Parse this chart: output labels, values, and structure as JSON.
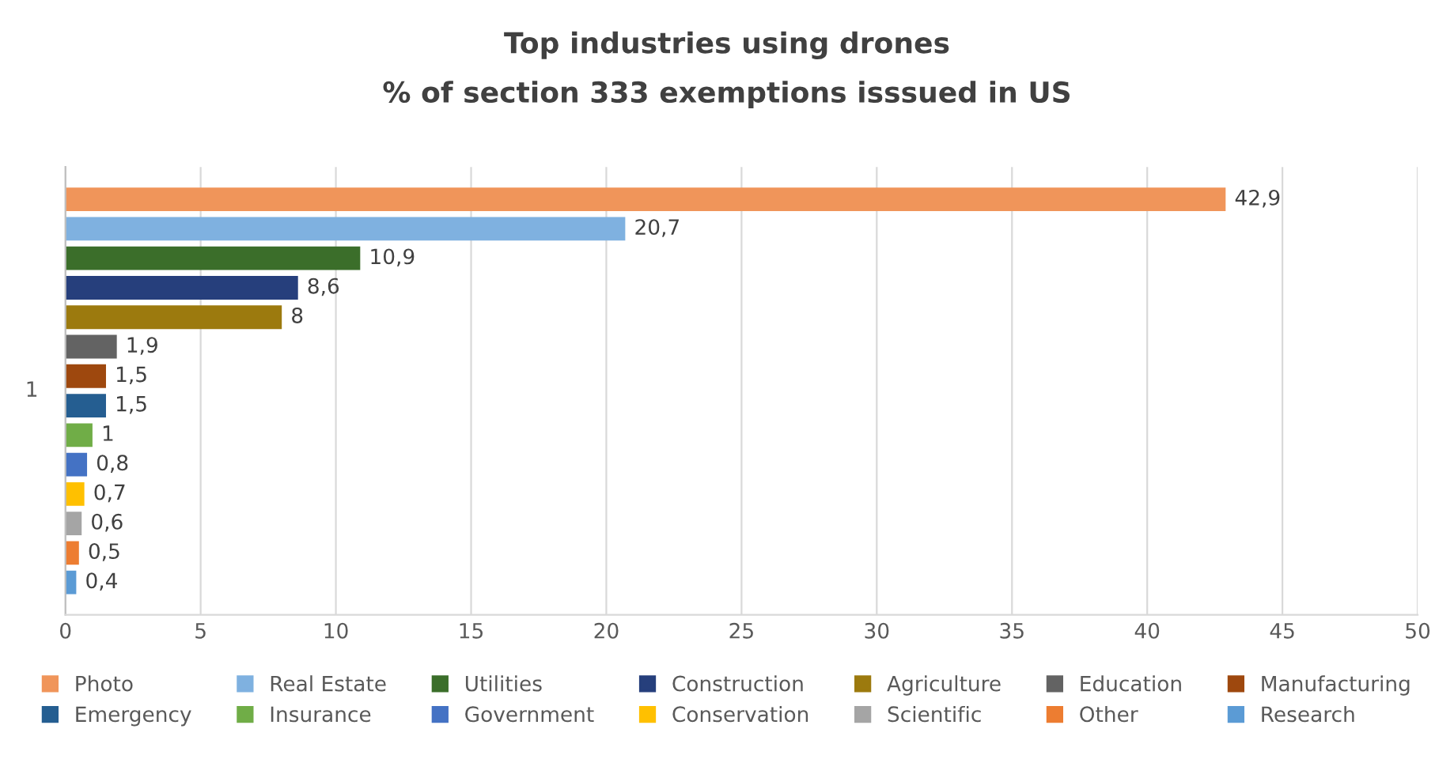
{
  "chart_data": {
    "type": "bar",
    "orientation": "horizontal",
    "stacked": true,
    "title": "Top industries using drones",
    "subtitle": "% of section 333 exemptions isssued in US",
    "annotations": [
      "1"
    ],
    "categories": [
      null,
      null,
      null,
      null,
      null,
      null,
      null,
      null,
      null,
      null,
      null,
      null,
      null,
      null
    ],
    "series": [
      {
        "name": "Photo",
        "color": "#f0955a",
        "values": [
          42.9,
          null,
          null,
          null,
          null,
          null,
          null,
          null,
          null,
          null,
          null,
          null,
          null,
          null
        ],
        "value_labels": [
          "42,9",
          null,
          null,
          null,
          null,
          null,
          null,
          null,
          null,
          null,
          null,
          null,
          null,
          null
        ]
      },
      {
        "name": "Real Estate",
        "color": "#7fb1e0",
        "values": [
          null,
          20.7,
          null,
          null,
          null,
          null,
          null,
          null,
          null,
          null,
          null,
          null,
          null,
          null
        ],
        "value_labels": [
          null,
          "20,7",
          null,
          null,
          null,
          null,
          null,
          null,
          null,
          null,
          null,
          null,
          null,
          null
        ]
      },
      {
        "name": "Utilities",
        "color": "#3b6e2a",
        "values": [
          null,
          null,
          10.9,
          null,
          null,
          null,
          null,
          null,
          null,
          null,
          null,
          null,
          null,
          null
        ],
        "value_labels": [
          null,
          null,
          "10,9",
          null,
          null,
          null,
          null,
          null,
          null,
          null,
          null,
          null,
          null,
          null
        ]
      },
      {
        "name": "Construction",
        "color": "#263f7c",
        "values": [
          null,
          null,
          null,
          8.6,
          null,
          null,
          null,
          null,
          null,
          null,
          null,
          null,
          null,
          null
        ],
        "value_labels": [
          null,
          null,
          null,
          "8,6",
          null,
          null,
          null,
          null,
          null,
          null,
          null,
          null,
          null,
          null
        ]
      },
      {
        "name": "Agriculture",
        "color": "#9c7a0e",
        "values": [
          null,
          null,
          null,
          null,
          8,
          null,
          null,
          null,
          null,
          null,
          null,
          null,
          null,
          null
        ],
        "value_labels": [
          null,
          null,
          null,
          null,
          "8",
          null,
          null,
          null,
          null,
          null,
          null,
          null,
          null,
          null
        ]
      },
      {
        "name": "Education",
        "color": "#636363",
        "values": [
          null,
          null,
          null,
          null,
          null,
          1.9,
          null,
          null,
          null,
          null,
          null,
          null,
          null,
          null
        ],
        "value_labels": [
          null,
          null,
          null,
          null,
          null,
          "1,9",
          null,
          null,
          null,
          null,
          null,
          null,
          null,
          null
        ]
      },
      {
        "name": "Manufacturing",
        "color": "#9e480e",
        "values": [
          null,
          null,
          null,
          null,
          null,
          null,
          1.5,
          null,
          null,
          null,
          null,
          null,
          null,
          null
        ],
        "value_labels": [
          null,
          null,
          null,
          null,
          null,
          null,
          "1,5",
          null,
          null,
          null,
          null,
          null,
          null,
          null
        ]
      },
      {
        "name": "Emergency",
        "color": "#255e91",
        "values": [
          null,
          null,
          null,
          null,
          null,
          null,
          null,
          1.5,
          null,
          null,
          null,
          null,
          null,
          null
        ],
        "value_labels": [
          null,
          null,
          null,
          null,
          null,
          null,
          null,
          "1,5",
          null,
          null,
          null,
          null,
          null,
          null
        ]
      },
      {
        "name": "Insurance",
        "color": "#70ad47",
        "values": [
          null,
          null,
          null,
          null,
          null,
          null,
          null,
          null,
          1,
          null,
          null,
          null,
          null,
          null
        ],
        "value_labels": [
          null,
          null,
          null,
          null,
          null,
          null,
          null,
          null,
          "1",
          null,
          null,
          null,
          null,
          null
        ]
      },
      {
        "name": "Government",
        "color": "#4472c4",
        "values": [
          null,
          null,
          null,
          null,
          null,
          null,
          null,
          null,
          null,
          0.8,
          null,
          null,
          null,
          null
        ],
        "value_labels": [
          null,
          null,
          null,
          null,
          null,
          null,
          null,
          null,
          null,
          "0,8",
          null,
          null,
          null,
          null
        ]
      },
      {
        "name": "Conservation",
        "color": "#ffc000",
        "values": [
          null,
          null,
          null,
          null,
          null,
          null,
          null,
          null,
          null,
          null,
          0.7,
          null,
          null,
          null
        ],
        "value_labels": [
          null,
          null,
          null,
          null,
          null,
          null,
          null,
          null,
          null,
          null,
          "0,7",
          null,
          null,
          null
        ]
      },
      {
        "name": "Scientific",
        "color": "#a5a5a5",
        "values": [
          null,
          null,
          null,
          null,
          null,
          null,
          null,
          null,
          null,
          null,
          null,
          0.6,
          null,
          null
        ],
        "value_labels": [
          null,
          null,
          null,
          null,
          null,
          null,
          null,
          null,
          null,
          null,
          null,
          "0,6",
          null,
          null
        ]
      },
      {
        "name": "Other",
        "color": "#ed7d31",
        "values": [
          null,
          null,
          null,
          null,
          null,
          null,
          null,
          null,
          null,
          null,
          null,
          null,
          0.5,
          null
        ],
        "value_labels": [
          null,
          null,
          null,
          null,
          null,
          null,
          null,
          null,
          null,
          null,
          null,
          null,
          "0,5",
          null
        ]
      },
      {
        "name": "Research",
        "color": "#5b9bd5",
        "values": [
          null,
          null,
          null,
          null,
          null,
          null,
          null,
          null,
          null,
          null,
          null,
          null,
          null,
          0.4
        ],
        "value_labels": [
          null,
          null,
          null,
          null,
          null,
          null,
          null,
          null,
          null,
          null,
          null,
          null,
          null,
          "0,4"
        ]
      }
    ],
    "xlim": [
      0,
      50
    ],
    "xticks": [
      0,
      5,
      10,
      15,
      20,
      25,
      30,
      35,
      40,
      45,
      50
    ],
    "grid": "x",
    "legend": "bottom"
  }
}
